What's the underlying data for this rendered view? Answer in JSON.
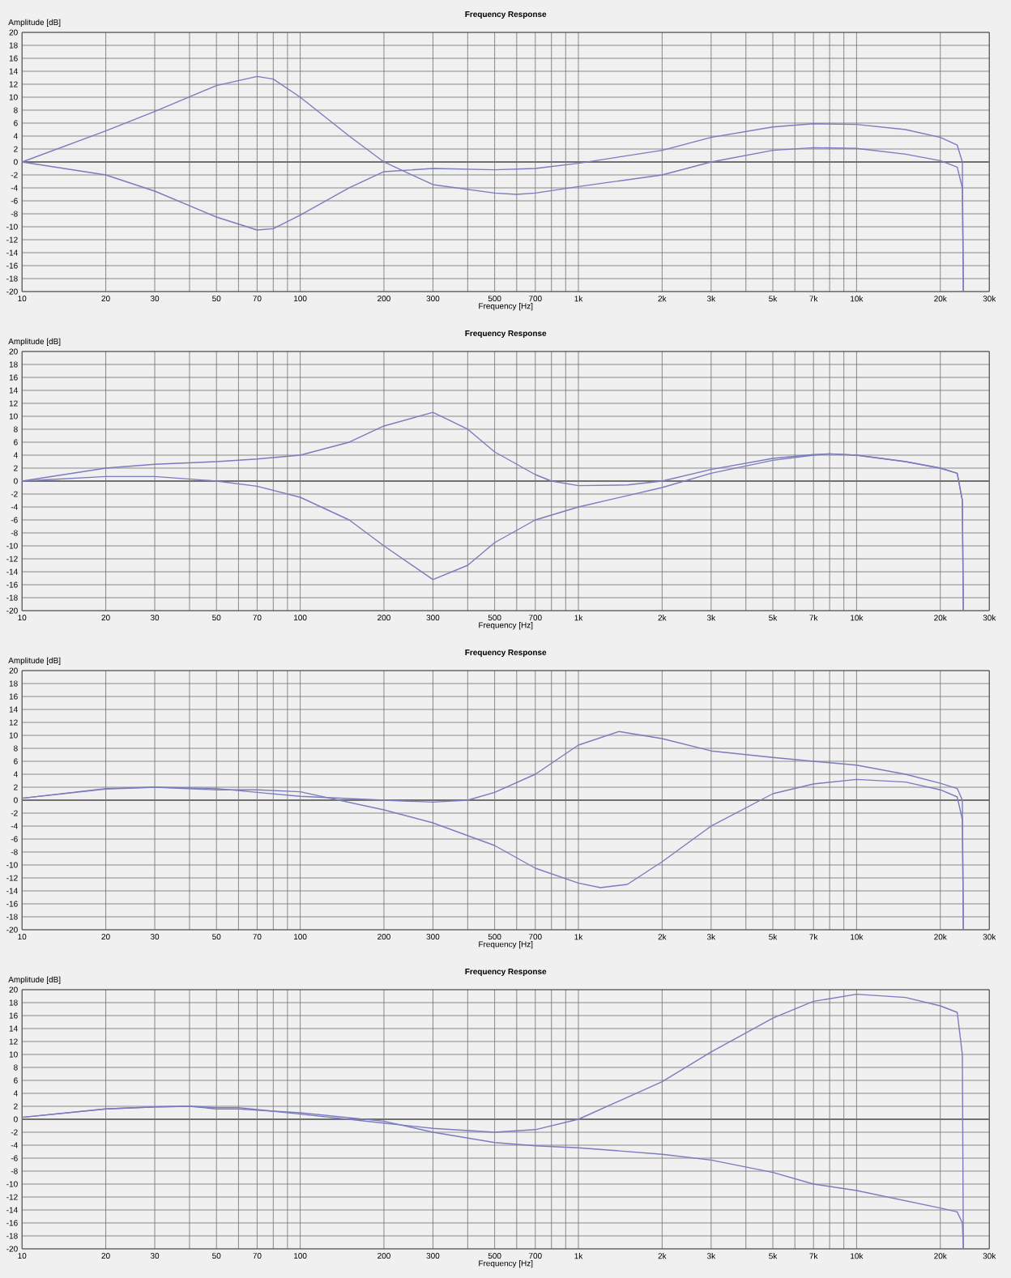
{
  "chart_data": [
    {
      "type": "line",
      "title": "Frequency Response",
      "xlabel": "Frequency [Hz]",
      "ylabel": "Amplitude [dB]",
      "log": "x",
      "grid": true,
      "xlim": [
        10,
        30000
      ],
      "ylim": [
        -20,
        20
      ],
      "xticks": [
        10,
        20,
        30,
        {
          "value": 40,
          "label": null
        },
        50,
        {
          "value": 60,
          "label": null
        },
        70,
        {
          "value": 80,
          "label": null
        },
        {
          "value": 90,
          "label": null
        },
        100,
        200,
        300,
        {
          "value": 400,
          "label": null
        },
        500,
        {
          "value": 600,
          "label": null
        },
        700,
        {
          "value": 800,
          "label": null
        },
        {
          "value": 900,
          "label": null
        },
        {
          "value": 1000,
          "label": "1k"
        },
        {
          "value": 2000,
          "label": "2k"
        },
        {
          "value": 3000,
          "label": "3k"
        },
        {
          "value": 4000,
          "label": null
        },
        {
          "value": 5000,
          "label": "5k"
        },
        {
          "value": 6000,
          "label": null
        },
        {
          "value": 7000,
          "label": "7k"
        },
        {
          "value": 8000,
          "label": null
        },
        {
          "value": 9000,
          "label": null
        },
        {
          "value": 10000,
          "label": "10k"
        },
        {
          "value": 20000,
          "label": "20k"
        },
        {
          "value": 30000,
          "label": "30k"
        }
      ],
      "yticks": [
        -20,
        -18,
        -16,
        -14,
        -12,
        -10,
        -8,
        -6,
        -4,
        -2,
        0,
        2,
        4,
        6,
        8,
        10,
        12,
        14,
        16,
        18,
        20
      ],
      "ref_lines": [
        {
          "axis": "y",
          "value": 0,
          "color": "#707070"
        }
      ],
      "series": [
        {
          "color": "#7b7bbf",
          "x": [
            10,
            20,
            30,
            50,
            70,
            80,
            100,
            150,
            200,
            300,
            500,
            600,
            700,
            1000,
            2000,
            3000,
            5000,
            7000,
            10000,
            15000,
            20000,
            23000,
            24000,
            24200
          ],
          "values": [
            0,
            4.8,
            7.8,
            11.8,
            13.2,
            12.8,
            10,
            4,
            0,
            -3.5,
            -4.8,
            -5,
            -4.8,
            -3.8,
            -2,
            0,
            1.8,
            2.2,
            2.1,
            1.2,
            0.2,
            -0.8,
            -4,
            -20
          ]
        },
        {
          "color": "#7b7bbf",
          "x": [
            10,
            20,
            30,
            50,
            70,
            80,
            100,
            150,
            200,
            300,
            500,
            700,
            1000,
            2000,
            3000,
            5000,
            7000,
            10000,
            15000,
            20000,
            23000,
            24000,
            24200
          ],
          "values": [
            0,
            -2,
            -4.5,
            -8.5,
            -10.5,
            -10.3,
            -8.2,
            -4,
            -1.5,
            -1,
            -1.2,
            -1,
            -0.2,
            1.8,
            3.8,
            5.4,
            5.9,
            5.8,
            5,
            3.8,
            2.6,
            0,
            -20
          ]
        }
      ]
    },
    {
      "type": "line",
      "title": "Frequency Response",
      "xlabel": "Frequency [Hz]",
      "ylabel": "Amplitude [dB]",
      "log": "x",
      "grid": true,
      "xlim": [
        10,
        30000
      ],
      "ylim": [
        -20,
        20
      ],
      "xticks": [
        10,
        20,
        30,
        {
          "value": 40,
          "label": null
        },
        50,
        {
          "value": 60,
          "label": null
        },
        70,
        {
          "value": 80,
          "label": null
        },
        {
          "value": 90,
          "label": null
        },
        100,
        200,
        300,
        {
          "value": 400,
          "label": null
        },
        500,
        {
          "value": 600,
          "label": null
        },
        700,
        {
          "value": 800,
          "label": null
        },
        {
          "value": 900,
          "label": null
        },
        {
          "value": 1000,
          "label": "1k"
        },
        {
          "value": 2000,
          "label": "2k"
        },
        {
          "value": 3000,
          "label": "3k"
        },
        {
          "value": 4000,
          "label": null
        },
        {
          "value": 5000,
          "label": "5k"
        },
        {
          "value": 6000,
          "label": null
        },
        {
          "value": 7000,
          "label": "7k"
        },
        {
          "value": 8000,
          "label": null
        },
        {
          "value": 9000,
          "label": null
        },
        {
          "value": 10000,
          "label": "10k"
        },
        {
          "value": 20000,
          "label": "20k"
        },
        {
          "value": 30000,
          "label": "30k"
        }
      ],
      "yticks": [
        -20,
        -18,
        -16,
        -14,
        -12,
        -10,
        -8,
        -6,
        -4,
        -2,
        0,
        2,
        4,
        6,
        8,
        10,
        12,
        14,
        16,
        18,
        20
      ],
      "ref_lines": [
        {
          "axis": "y",
          "value": 0,
          "color": "#707070"
        }
      ],
      "series": [
        {
          "color": "#7b7bbf",
          "x": [
            10,
            20,
            30,
            50,
            70,
            100,
            150,
            200,
            300,
            400,
            500,
            700,
            800,
            1000,
            1500,
            2000,
            3000,
            5000,
            7000,
            8000,
            10000,
            15000,
            20000,
            23000,
            24000,
            24200
          ],
          "values": [
            0,
            2,
            2.6,
            3,
            3.4,
            4,
            6,
            8.5,
            10.6,
            8,
            4.5,
            1,
            0,
            -0.7,
            -0.6,
            0,
            1.8,
            3.5,
            4.1,
            4.2,
            4,
            3,
            2,
            1.2,
            -3,
            -20
          ]
        },
        {
          "color": "#7b7bbf",
          "x": [
            10,
            20,
            30,
            50,
            70,
            100,
            150,
            200,
            300,
            400,
            500,
            700,
            1000,
            2000,
            3000,
            5000,
            7000,
            8000,
            10000,
            15000,
            20000,
            23000,
            24000,
            24200
          ],
          "values": [
            0,
            0.7,
            0.7,
            0,
            -0.8,
            -2.5,
            -6,
            -10,
            -15.2,
            -13,
            -9.5,
            -6,
            -4,
            -1,
            1.2,
            3.2,
            4,
            4.2,
            4,
            3,
            2,
            1.2,
            -3,
            -20
          ]
        }
      ]
    },
    {
      "type": "line",
      "title": "Frequency Response",
      "xlabel": "Frequency [Hz]",
      "ylabel": "Amplitude [dB]",
      "log": "x",
      "grid": true,
      "xlim": [
        10,
        30000
      ],
      "ylim": [
        -20,
        20
      ],
      "xticks": [
        10,
        20,
        30,
        {
          "value": 40,
          "label": null
        },
        50,
        {
          "value": 60,
          "label": null
        },
        70,
        {
          "value": 80,
          "label": null
        },
        {
          "value": 90,
          "label": null
        },
        100,
        200,
        300,
        {
          "value": 400,
          "label": null
        },
        500,
        {
          "value": 600,
          "label": null
        },
        700,
        {
          "value": 800,
          "label": null
        },
        {
          "value": 900,
          "label": null
        },
        {
          "value": 1000,
          "label": "1k"
        },
        {
          "value": 2000,
          "label": "2k"
        },
        {
          "value": 3000,
          "label": "3k"
        },
        {
          "value": 4000,
          "label": null
        },
        {
          "value": 5000,
          "label": "5k"
        },
        {
          "value": 6000,
          "label": null
        },
        {
          "value": 7000,
          "label": "7k"
        },
        {
          "value": 8000,
          "label": null
        },
        {
          "value": 9000,
          "label": null
        },
        {
          "value": 10000,
          "label": "10k"
        },
        {
          "value": 20000,
          "label": "20k"
        },
        {
          "value": 30000,
          "label": "30k"
        }
      ],
      "yticks": [
        -20,
        -18,
        -16,
        -14,
        -12,
        -10,
        -8,
        -6,
        -4,
        -2,
        0,
        2,
        4,
        6,
        8,
        10,
        12,
        14,
        16,
        18,
        20
      ],
      "ref_lines": [
        {
          "axis": "y",
          "value": 0,
          "color": "#707070"
        }
      ],
      "series": [
        {
          "color": "#7b7bbf",
          "x": [
            10,
            20,
            30,
            50,
            70,
            100,
            200,
            300,
            400,
            500,
            700,
            1000,
            1400,
            2000,
            3000,
            5000,
            7000,
            10000,
            15000,
            20000,
            23000,
            24000,
            24200
          ],
          "values": [
            0.3,
            1.7,
            2,
            1.8,
            1.2,
            0.6,
            0,
            -0.3,
            0,
            1.2,
            4,
            8.5,
            10.6,
            9.5,
            7.6,
            6.6,
            6,
            5.4,
            4,
            2.6,
            1.8,
            0,
            -20
          ]
        },
        {
          "color": "#7b7bbf",
          "x": [
            10,
            20,
            30,
            50,
            70,
            100,
            200,
            300,
            500,
            700,
            1000,
            1200,
            1500,
            2000,
            3000,
            5000,
            7000,
            10000,
            15000,
            20000,
            23000,
            24000,
            24200
          ],
          "values": [
            0.3,
            1.8,
            2,
            1.6,
            1.6,
            1.3,
            -1.5,
            -3.5,
            -7,
            -10.5,
            -12.8,
            -13.5,
            -13,
            -9.5,
            -4,
            1,
            2.5,
            3.2,
            2.8,
            1.6,
            0.5,
            -3,
            -20
          ]
        }
      ]
    },
    {
      "type": "line",
      "title": "Frequency Response",
      "xlabel": "Frequency [Hz]",
      "ylabel": "Amplitude [dB]",
      "log": "x",
      "grid": true,
      "xlim": [
        10,
        30000
      ],
      "ylim": [
        -20,
        20
      ],
      "xticks": [
        10,
        20,
        30,
        {
          "value": 40,
          "label": null
        },
        50,
        {
          "value": 60,
          "label": null
        },
        70,
        {
          "value": 80,
          "label": null
        },
        {
          "value": 90,
          "label": null
        },
        100,
        200,
        300,
        {
          "value": 400,
          "label": null
        },
        500,
        {
          "value": 600,
          "label": null
        },
        700,
        {
          "value": 800,
          "label": null
        },
        {
          "value": 900,
          "label": null
        },
        {
          "value": 1000,
          "label": "1k"
        },
        {
          "value": 2000,
          "label": "2k"
        },
        {
          "value": 3000,
          "label": "3k"
        },
        {
          "value": 4000,
          "label": null
        },
        {
          "value": 5000,
          "label": "5k"
        },
        {
          "value": 6000,
          "label": null
        },
        {
          "value": 7000,
          "label": "7k"
        },
        {
          "value": 8000,
          "label": null
        },
        {
          "value": 9000,
          "label": null
        },
        {
          "value": 10000,
          "label": "10k"
        },
        {
          "value": 20000,
          "label": "20k"
        },
        {
          "value": 30000,
          "label": "30k"
        }
      ],
      "yticks": [
        -20,
        -18,
        -16,
        -14,
        -12,
        -10,
        -8,
        -6,
        -4,
        -2,
        0,
        2,
        4,
        6,
        8,
        10,
        12,
        14,
        16,
        18,
        20
      ],
      "ref_lines": [
        {
          "axis": "y",
          "value": 0,
          "color": "#707070"
        }
      ],
      "series": [
        {
          "color": "#7b7bbf",
          "x": [
            10,
            20,
            30,
            40,
            50,
            60,
            70,
            100,
            200,
            300,
            500,
            700,
            1000,
            2000,
            3000,
            5000,
            7000,
            10000,
            15000,
            20000,
            23000,
            24000,
            24200
          ],
          "values": [
            0.3,
            1.6,
            1.9,
            2,
            1.8,
            1.8,
            1.5,
            0.8,
            -0.6,
            -1.4,
            -2,
            -1.6,
            0,
            5.8,
            10.4,
            15.6,
            18.2,
            19.3,
            18.8,
            17.5,
            16.5,
            10,
            -20
          ]
        },
        {
          "color": "#7b7bbf",
          "x": [
            10,
            20,
            30,
            40,
            50,
            60,
            70,
            100,
            200,
            300,
            500,
            700,
            1000,
            2000,
            3000,
            5000,
            7000,
            10000,
            20000,
            23000,
            24000,
            24200
          ],
          "values": [
            0.3,
            1.6,
            1.9,
            2,
            1.6,
            1.6,
            1.4,
            1,
            -0.3,
            -2,
            -3.6,
            -4.1,
            -4.4,
            -5.4,
            -6.3,
            -8.2,
            -10,
            -11,
            -13.7,
            -14.3,
            -16,
            -20
          ]
        }
      ]
    }
  ]
}
